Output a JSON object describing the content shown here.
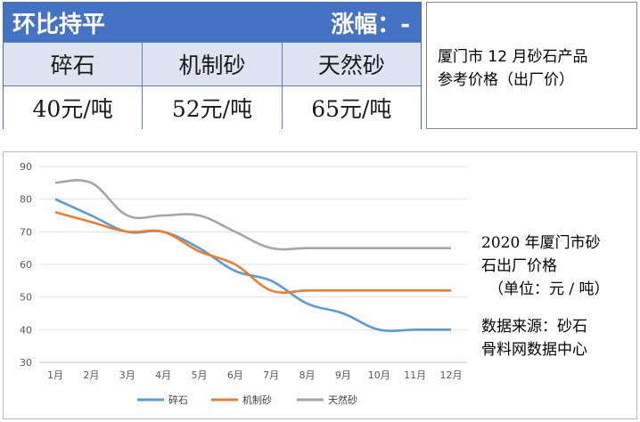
{
  "table": {
    "header_left": "环比持平",
    "header_right": "涨幅：-",
    "columns": [
      "碎石",
      "机制砂",
      "天然砂"
    ],
    "prices": [
      "40元/吨",
      "52元/吨",
      "65元/吨"
    ]
  },
  "table_caption": [
    "厦门市 12 月砂石产品",
    "参考价格（出厂价）"
  ],
  "chart_note": {
    "title_lines": [
      "2020 年厦门市砂",
      "石出厂价格"
    ],
    "unit": "（单位：元 / 吨）",
    "source_lines": [
      "数据来源：砂石",
      "骨料网数据中心"
    ]
  },
  "chart_data": {
    "type": "line",
    "categories": [
      "1月",
      "2月",
      "3月",
      "4月",
      "5月",
      "6月",
      "7月",
      "8月",
      "9月",
      "10月",
      "11月",
      "12月"
    ],
    "ylim": [
      30,
      90
    ],
    "yticks": [
      30,
      40,
      50,
      60,
      70,
      80,
      90
    ],
    "grid": true,
    "legend_position": "bottom",
    "series": [
      {
        "name": "碎石",
        "color": "#5b9bd5",
        "values": [
          80,
          75,
          70,
          70,
          65,
          58,
          55,
          48,
          45,
          40,
          40,
          40
        ]
      },
      {
        "name": "机制砂",
        "color": "#ed7d31",
        "values": [
          76,
          73,
          70,
          70,
          64,
          60,
          52,
          52,
          52,
          52,
          52,
          52
        ]
      },
      {
        "name": "天然砂",
        "color": "#a5a5a5",
        "values": [
          85,
          85,
          75,
          75,
          75,
          70,
          65,
          65,
          65,
          65,
          65,
          65
        ]
      }
    ]
  }
}
